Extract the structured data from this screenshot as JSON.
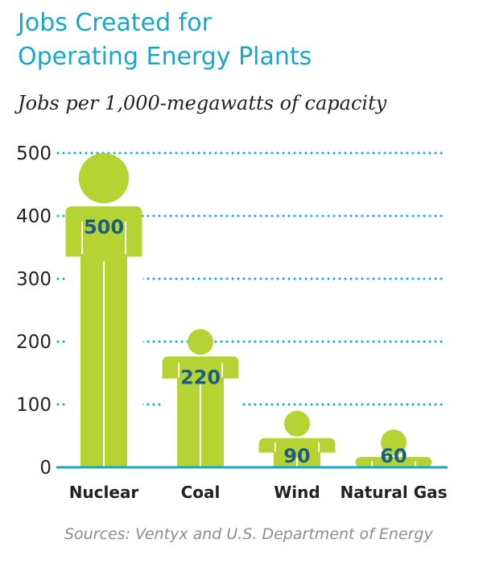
{
  "chart_data": {
    "type": "bar",
    "title": "Jobs Created for Operating Energy Plants",
    "title_lines": [
      "Jobs Created for",
      "Operating Energy Plants"
    ],
    "subtitle": "Jobs per 1,000-megawatts of capacity",
    "categories": [
      "Nuclear",
      "Coal",
      "Wind",
      "Natural Gas"
    ],
    "values": [
      500,
      220,
      90,
      60
    ],
    "value_labels": [
      "500",
      "220",
      "90",
      "60"
    ],
    "yticks": [
      "0",
      "100",
      "200",
      "300",
      "400",
      "500"
    ],
    "ylim": [
      0,
      500
    ],
    "grid": true,
    "bar_shape": "person-figure",
    "source": "Sources: Ventyx and U.S. Department of Energy"
  },
  "colors": {
    "title": "#1aa6c8",
    "figure": "#b6d334",
    "value_label": "#1b5e84",
    "grid": "#1aa6c8",
    "axis": "#1aa6c8",
    "text": "#222222",
    "source": "#8c8c8c"
  }
}
